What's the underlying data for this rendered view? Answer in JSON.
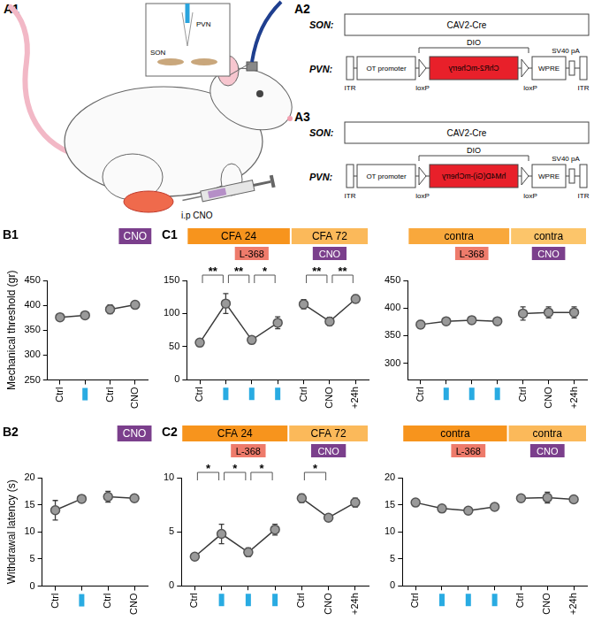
{
  "diagram": {
    "rat": {
      "panel": "A1",
      "pvn": "PVN",
      "son": "SON",
      "injection": "i.p CNO"
    },
    "constructs": [
      {
        "panel": "A2",
        "son_label": "SON:",
        "son_vector": "CAV2-Cre",
        "pvn_label": "PVN:",
        "itr": "ITR",
        "promoter": "OT promoter",
        "dio": "DIO",
        "insert": "ChR2-mCherry",
        "loxp": "loxP",
        "wpre": "WPRE",
        "polya": "SV40 pA"
      },
      {
        "panel": "A3",
        "son_label": "SON:",
        "son_vector": "CAV2-Cre",
        "pvn_label": "PVN:",
        "itr": "ITR",
        "promoter": "OT promoter",
        "dio": "DIO",
        "insert": "hM4D(Gi)-mCherry",
        "loxp": "loxP",
        "wpre": "WPRE",
        "polya": "SV40 pA"
      }
    ]
  },
  "chart_data": [
    {
      "panel": "B1",
      "type": "line",
      "y_label": "Mechanical threshold (gr)",
      "color": "#9a9a9a",
      "marker": "circle",
      "line_style": "solid",
      "grid": false,
      "categories": [
        "Ctrl",
        null,
        "Ctrl",
        "CNO"
      ],
      "series": [
        {
          "values": [
            376,
            380,
            null,
            null
          ],
          "errors": [
            3,
            3,
            null,
            null
          ]
        },
        {
          "values": [
            null,
            null,
            392,
            401
          ],
          "errors": [
            null,
            null,
            9,
            5
          ]
        }
      ],
      "ylim": [
        250,
        450
      ],
      "yticks": [
        250,
        300,
        350,
        400,
        450
      ],
      "headers": [
        {
          "text": "CNO",
          "from": 3,
          "to": 3,
          "row": 0,
          "color": "#7b3f8c"
        }
      ],
      "annotations": []
    },
    {
      "panel": "C1",
      "type": "line",
      "color": "#9a9a9a",
      "marker": "circle",
      "line_style": "solid",
      "grid": false,
      "categories": [
        "Ctrl",
        null,
        null,
        null,
        "Ctrl",
        "CNO",
        "+24h"
      ],
      "series": [
        {
          "values": [
            56,
            115,
            60,
            86,
            null,
            null,
            null
          ],
          "errors": [
            5,
            15,
            4,
            9,
            null,
            null,
            null
          ]
        },
        {
          "values": [
            null,
            null,
            null,
            null,
            114,
            88,
            122
          ],
          "errors": [
            null,
            null,
            null,
            null,
            7,
            6,
            6
          ]
        }
      ],
      "ylim": [
        0,
        150
      ],
      "yticks": [
        0,
        50,
        100,
        150
      ],
      "headers": [
        {
          "text": "CFA 24",
          "from": 0,
          "to": 3,
          "row": 0,
          "color": "#f7941d"
        },
        {
          "text": "CFA 72",
          "from": 4,
          "to": 6,
          "row": 0,
          "color": "#fbb95a"
        },
        {
          "text": "L-368",
          "from": 2,
          "to": 2,
          "row": 1,
          "color": "#ee7b6b"
        },
        {
          "text": "CNO",
          "from": 5,
          "to": 5,
          "row": 1,
          "color": "#7b3f8c"
        }
      ],
      "annotations": [
        {
          "text": "**",
          "from": 0,
          "to": 1
        },
        {
          "text": "**",
          "from": 1,
          "to": 2
        },
        {
          "text": "*",
          "from": 2,
          "to": 3
        },
        {
          "text": "**",
          "from": 4,
          "to": 5
        },
        {
          "text": "**",
          "from": 5,
          "to": 6
        }
      ]
    },
    {
      "type": "line",
      "color": "#9a9a9a",
      "marker": "circle",
      "line_style": "solid",
      "grid": false,
      "categories": [
        "Ctrl",
        null,
        null,
        null,
        "Ctrl",
        "CNO",
        "+24h"
      ],
      "series": [
        {
          "values": [
            370,
            376,
            378,
            376,
            null,
            null,
            null
          ],
          "errors": [
            7,
            5,
            6,
            5,
            null,
            null,
            null
          ]
        },
        {
          "values": [
            null,
            null,
            null,
            null,
            390,
            392,
            392
          ],
          "errors": [
            null,
            null,
            null,
            null,
            12,
            10,
            10
          ]
        }
      ],
      "ylim": [
        270,
        450
      ],
      "yticks": [
        300,
        350,
        400,
        450
      ],
      "headers": [
        {
          "text": "contra",
          "from": 0,
          "to": 3,
          "row": 0,
          "color": "#f9a83c"
        },
        {
          "text": "contra",
          "from": 4,
          "to": 6,
          "row": 0,
          "color": "#fcc56a"
        },
        {
          "text": "L-368",
          "from": 2,
          "to": 2,
          "row": 1,
          "color": "#ee7b6b"
        },
        {
          "text": "CNO",
          "from": 5,
          "to": 5,
          "row": 1,
          "color": "#7b3f8c"
        }
      ],
      "annotations": []
    },
    {
      "panel": "B2",
      "type": "line",
      "y_label": "Withdrawal latency (s)",
      "color": "#9a9a9a",
      "marker": "circle",
      "line_style": "solid",
      "grid": false,
      "categories": [
        "Ctrl",
        null,
        "Ctrl",
        "CNO"
      ],
      "series": [
        {
          "values": [
            14.0,
            16.1,
            null,
            null
          ],
          "errors": [
            1.8,
            0.6,
            null,
            null
          ]
        },
        {
          "values": [
            null,
            null,
            16.5,
            16.2
          ],
          "errors": [
            null,
            null,
            1.0,
            0.6
          ]
        }
      ],
      "ylim": [
        0,
        20
      ],
      "yticks": [
        0,
        5,
        10,
        15,
        20
      ],
      "headers": [
        {
          "text": "CNO",
          "from": 3,
          "to": 3,
          "row": 0,
          "color": "#7b3f8c"
        }
      ],
      "annotations": []
    },
    {
      "panel": "C2",
      "type": "line",
      "color": "#9a9a9a",
      "marker": "circle",
      "line_style": "solid",
      "grid": false,
      "categories": [
        "Ctrl",
        null,
        null,
        null,
        "Ctrl",
        "CNO",
        "+24h"
      ],
      "series": [
        {
          "values": [
            2.7,
            4.8,
            3.1,
            5.2,
            null,
            null,
            null
          ],
          "errors": [
            0.2,
            0.9,
            0.4,
            0.5,
            null,
            null,
            null
          ]
        },
        {
          "values": [
            null,
            null,
            null,
            null,
            8.1,
            6.3,
            7.7
          ],
          "errors": [
            null,
            null,
            null,
            null,
            0.4,
            0.3,
            0.4
          ]
        }
      ],
      "ylim": [
        0,
        10
      ],
      "yticks": [
        0,
        5,
        10
      ],
      "headers": [
        {
          "text": "CFA 24",
          "from": 0,
          "to": 3,
          "row": 0,
          "color": "#f7941d"
        },
        {
          "text": "CFA 72",
          "from": 4,
          "to": 6,
          "row": 0,
          "color": "#fbb95a"
        },
        {
          "text": "L-368",
          "from": 2,
          "to": 2,
          "row": 1,
          "color": "#ee7b6b"
        },
        {
          "text": "CNO",
          "from": 5,
          "to": 5,
          "row": 1,
          "color": "#7b3f8c"
        }
      ],
      "annotations": [
        {
          "text": "*",
          "from": 0,
          "to": 1
        },
        {
          "text": "*",
          "from": 1,
          "to": 2
        },
        {
          "text": "*",
          "from": 2,
          "to": 3
        },
        {
          "text": "*",
          "from": 4,
          "to": 5
        }
      ]
    },
    {
      "type": "line",
      "color": "#9a9a9a",
      "marker": "circle",
      "line_style": "solid",
      "grid": false,
      "categories": [
        "Ctrl",
        null,
        null,
        null,
        "Ctrl",
        "CNO",
        "+24h"
      ],
      "series": [
        {
          "values": [
            15.4,
            14.3,
            13.9,
            14.6,
            null,
            null,
            null
          ],
          "errors": [
            0.4,
            0.7,
            0.6,
            0.6,
            null,
            null,
            null
          ]
        },
        {
          "values": [
            null,
            null,
            null,
            null,
            16.2,
            16.3,
            16.0
          ],
          "errors": [
            null,
            null,
            null,
            null,
            0.5,
            1.0,
            0.5
          ]
        }
      ],
      "ylim": [
        0,
        20
      ],
      "yticks": [
        0,
        5,
        10,
        15,
        20
      ],
      "headers": [
        {
          "text": "contra",
          "from": 0,
          "to": 3,
          "row": 0,
          "color": "#f7941d"
        },
        {
          "text": "contra",
          "from": 4,
          "to": 6,
          "row": 0,
          "color": "#fbb95a"
        },
        {
          "text": "L-368",
          "from": 2,
          "to": 2,
          "row": 1,
          "color": "#ee7b6b"
        },
        {
          "text": "CNO",
          "from": 5,
          "to": 5,
          "row": 1,
          "color": "#7b3f8c"
        }
      ],
      "annotations": []
    }
  ]
}
